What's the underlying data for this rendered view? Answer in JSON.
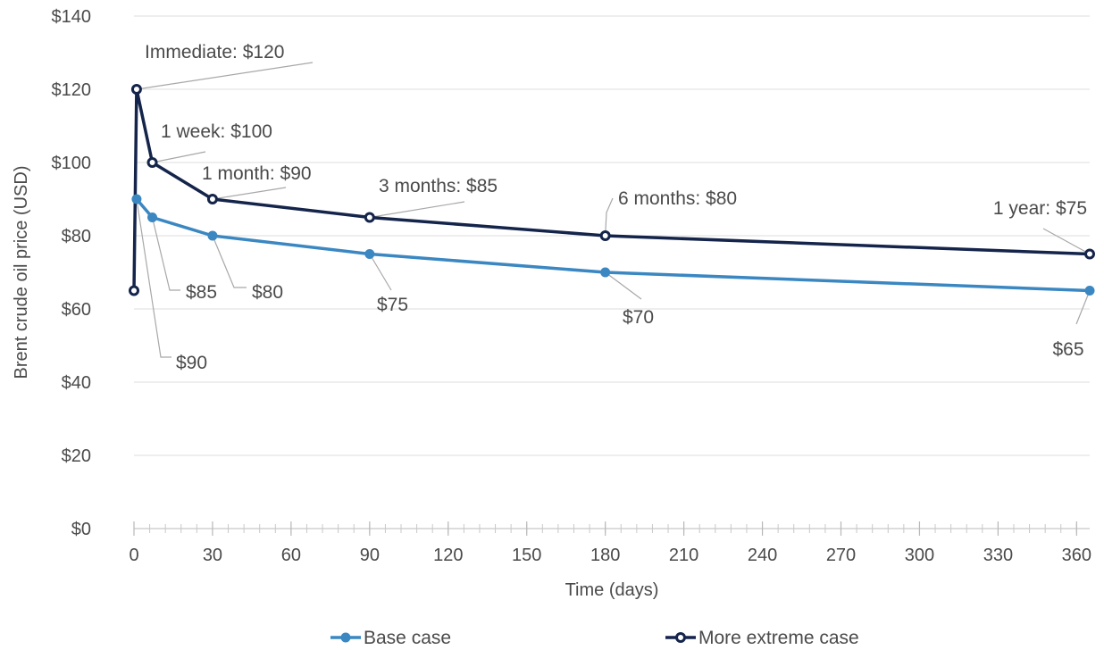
{
  "chart_data": {
    "type": "line",
    "xlabel": "Time (days)",
    "ylabel": "Brent crude oil price (USD)",
    "xlim": [
      0,
      365
    ],
    "ylim": [
      0,
      140
    ],
    "x_ticks": [
      0,
      30,
      60,
      90,
      120,
      150,
      180,
      210,
      240,
      270,
      300,
      330,
      360
    ],
    "x_tick_labels": [
      "0",
      "30",
      "60",
      "90",
      "120",
      "150",
      "180",
      "210",
      "240",
      "270",
      "300",
      "330",
      "360"
    ],
    "y_ticks": [
      0,
      20,
      40,
      60,
      80,
      100,
      120,
      140
    ],
    "y_tick_labels": [
      "$0",
      "$20",
      "$40",
      "$60",
      "$80",
      "$100",
      "$120",
      "$140"
    ],
    "grid": true,
    "legend_position": "bottom",
    "series": [
      {
        "name": "Base case",
        "color": "#3a87c2",
        "points": [
          [
            1,
            90
          ],
          [
            7,
            85
          ],
          [
            30,
            80
          ],
          [
            90,
            75
          ],
          [
            180,
            70
          ],
          [
            365,
            65
          ]
        ]
      },
      {
        "name": "More extreme case",
        "color": "#14244a",
        "points": [
          [
            0,
            65
          ],
          [
            1,
            120
          ],
          [
            7,
            100
          ],
          [
            30,
            90
          ],
          [
            90,
            85
          ],
          [
            180,
            80
          ],
          [
            365,
            75
          ]
        ]
      }
    ],
    "annotations": [
      {
        "series": 1,
        "point": 1,
        "text": "Immediate: $120"
      },
      {
        "series": 1,
        "point": 2,
        "text": "1 week:  $100"
      },
      {
        "series": 1,
        "point": 3,
        "text": "1 month:  $90"
      },
      {
        "series": 1,
        "point": 4,
        "text": "3 months:  $85"
      },
      {
        "series": 1,
        "point": 5,
        "text": "6 months:  $80"
      },
      {
        "series": 1,
        "point": 6,
        "text": "1 year:  $75"
      },
      {
        "series": 0,
        "point": 0,
        "text": "$90"
      },
      {
        "series": 0,
        "point": 1,
        "text": "$85"
      },
      {
        "series": 0,
        "point": 2,
        "text": "$80"
      },
      {
        "series": 0,
        "point": 3,
        "text": "$75"
      },
      {
        "series": 0,
        "point": 4,
        "text": "$70"
      },
      {
        "series": 0,
        "point": 5,
        "text": "$65"
      }
    ]
  }
}
